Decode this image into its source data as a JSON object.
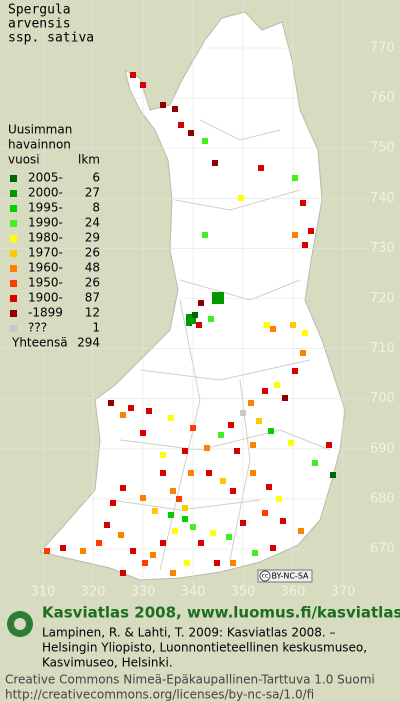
{
  "title_lines": [
    "Spergula",
    "arvensis",
    "ssp. sativa"
  ],
  "legend": {
    "header_lines": [
      "Uusimman",
      "havainnon",
      "vuosi"
    ],
    "count_header": "lkm",
    "items": [
      {
        "label": "2005-",
        "count": 6,
        "color": "#006400"
      },
      {
        "label": "2000-",
        "count": 27,
        "color": "#009a00"
      },
      {
        "label": "1995-",
        "count": 8,
        "color": "#00d000"
      },
      {
        "label": "1990-",
        "count": 24,
        "color": "#44ee22"
      },
      {
        "label": "1980-",
        "count": 29,
        "color": "#ffff00"
      },
      {
        "label": "1970-",
        "count": 26,
        "color": "#ffc800"
      },
      {
        "label": "1960-",
        "count": 48,
        "color": "#ff8000"
      },
      {
        "label": "1950-",
        "count": 26,
        "color": "#ff3c00"
      },
      {
        "label": "1900-",
        "count": 87,
        "color": "#d80000"
      },
      {
        "label": "-1899",
        "count": 12,
        "color": "#900000"
      },
      {
        "label": "???",
        "count": 1,
        "color": "#c8c8c8"
      }
    ],
    "total_label": "Yhteensä",
    "total": 294
  },
  "axes": {
    "y_labels": [
      770,
      760,
      750,
      740,
      730,
      720,
      710,
      700,
      690,
      680,
      670
    ],
    "x_labels": [
      310,
      320,
      330,
      340,
      350,
      360,
      370
    ]
  },
  "license_badge": {
    "icon": "cc",
    "text": "BY-NC-SA"
  },
  "footer": {
    "site": "Kasviatlas 2008, www.luomus.fi/kasviatlas",
    "citation_lines": [
      "Lampinen, R. & Lahti, T. 2009: Kasviatlas 2008. –",
      "Helsingin Yliopisto, Luonnontieteellinen keskusmuseo,",
      "Kasvimuseo, Helsinki."
    ],
    "license_lines": [
      "Creative Commons Nimeä-Epäkaupallinen-Tarttuva 1.0 Suomi",
      "http://creativecommons.org/licenses/by-nc-sa/1.0/fi"
    ]
  }
}
